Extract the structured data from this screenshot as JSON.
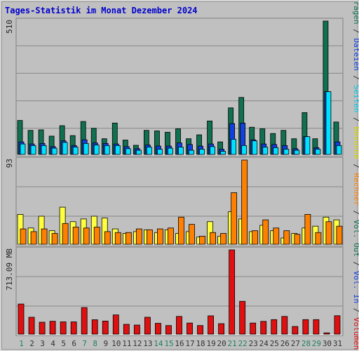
{
  "title": "Tages-Statistik im Monat Dezember 2024",
  "colors": {
    "title": "#0000cc",
    "background": "#c0c0c0",
    "panel": "#c0c0c0",
    "grid": "#888888",
    "anfragen": "#107050",
    "dateien": "#1040e0",
    "seiten": "#00e0ff",
    "besuche": "#ffff40",
    "rechner": "#ff8000",
    "volumen": "#e01010",
    "weekday_label": "#333333",
    "weekend_label": "#208060"
  },
  "right_labels": {
    "top": [
      {
        "text": "Anfragen",
        "color": "#107050"
      },
      {
        "text": " / ",
        "color": "#333333"
      },
      {
        "text": "Dateien",
        "color": "#1040e0"
      },
      {
        "text": " / ",
        "color": "#333333"
      },
      {
        "text": "Seiten",
        "color": "#00c8e8"
      },
      {
        "text": " / ",
        "color": "#333333"
      },
      {
        "text": "Besuche",
        "color": "#d8d800"
      },
      {
        "text": " / ",
        "color": "#333333"
      },
      {
        "text": "Rechner",
        "color": "#ff8000"
      },
      {
        "text": " / ",
        "color": "#333333"
      },
      {
        "text": "Vol. Out",
        "color": "#107050"
      },
      {
        "text": " / ",
        "color": "#333333"
      },
      {
        "text": "Vol. In",
        "color": "#1040e0"
      },
      {
        "text": " / ",
        "color": "#333333"
      },
      {
        "text": "Volumen",
        "color": "#e01010"
      }
    ]
  },
  "chart_data": [
    {
      "type": "bar",
      "panel": "top",
      "ymax_label": "510",
      "ylim": [
        0,
        510
      ],
      "categories": [
        "1",
        "2",
        "3",
        "4",
        "5",
        "6",
        "7",
        "8",
        "9",
        "10",
        "11",
        "12",
        "13",
        "14",
        "15",
        "16",
        "17",
        "18",
        "19",
        "20",
        "21",
        "22",
        "23",
        "24",
        "25",
        "26",
        "27",
        "28",
        "29",
        "30",
        "31"
      ],
      "weekend_days": [
        1,
        7,
        8,
        14,
        15,
        21,
        22,
        28,
        29
      ],
      "series": [
        {
          "name": "Anfragen",
          "values": [
            130,
            92,
            94,
            70,
            110,
            72,
            126,
            100,
            60,
            120,
            55,
            35,
            92,
            90,
            85,
            98,
            60,
            75,
            128,
            48,
            178,
            218,
            104,
            98,
            80,
            92,
            60,
            160,
            60,
            510,
            124
          ]
        },
        {
          "name": "Dateien",
          "values": [
            48,
            40,
            42,
            30,
            52,
            34,
            56,
            44,
            42,
            40,
            30,
            22,
            36,
            32,
            32,
            44,
            38,
            32,
            40,
            20,
            118,
            120,
            56,
            40,
            38,
            34,
            22,
            68,
            26,
            240,
            48
          ]
        },
        {
          "name": "Seiten",
          "values": [
            40,
            34,
            34,
            24,
            46,
            28,
            42,
            36,
            34,
            34,
            22,
            16,
            28,
            20,
            24,
            28,
            16,
            20,
            30,
            12,
            58,
            34,
            52,
            28,
            26,
            20,
            16,
            68,
            20,
            240,
            34
          ]
        }
      ]
    },
    {
      "type": "bar",
      "panel": "middle",
      "ymax_label": "93",
      "ylim": [
        0,
        93
      ],
      "categories": [
        "1",
        "2",
        "3",
        "4",
        "5",
        "6",
        "7",
        "8",
        "9",
        "10",
        "11",
        "12",
        "13",
        "14",
        "15",
        "16",
        "17",
        "18",
        "19",
        "20",
        "21",
        "22",
        "23",
        "24",
        "25",
        "26",
        "27",
        "28",
        "29",
        "30",
        "31"
      ],
      "series": [
        {
          "name": "Besuche",
          "values": [
            33,
            18,
            31,
            15,
            41,
            25,
            28,
            31,
            29,
            17,
            12,
            14,
            16,
            13,
            16,
            12,
            14,
            8,
            25,
            9,
            36,
            28,
            14,
            21,
            15,
            7,
            12,
            18,
            20,
            30,
            27
          ]
        },
        {
          "name": "Rechner",
          "values": [
            17,
            14,
            17,
            12,
            23,
            19,
            18,
            19,
            14,
            13,
            13,
            17,
            16,
            17,
            18,
            30,
            22,
            9,
            13,
            12,
            57,
            93,
            15,
            27,
            18,
            15,
            11,
            33,
            13,
            25,
            20
          ]
        }
      ]
    },
    {
      "type": "bar",
      "panel": "bottom",
      "ymax_label": "713.09 MB",
      "ylim": [
        0,
        713.09
      ],
      "categories": [
        "1",
        "2",
        "3",
        "4",
        "5",
        "6",
        "7",
        "8",
        "9",
        "10",
        "11",
        "12",
        "13",
        "14",
        "15",
        "16",
        "17",
        "18",
        "19",
        "20",
        "21",
        "22",
        "23",
        "24",
        "25",
        "26",
        "27",
        "28",
        "29",
        "30",
        "31"
      ],
      "series": [
        {
          "name": "Volumen",
          "values": [
            255,
            143,
            101,
            109,
            104,
            104,
            225,
            122,
            111,
            163,
            83,
            77,
            143,
            92,
            73,
            150,
            94,
            73,
            155,
            89,
            713,
            278,
            94,
            108,
            123,
            150,
            65,
            123,
            123,
            11,
            156
          ]
        }
      ]
    }
  ]
}
